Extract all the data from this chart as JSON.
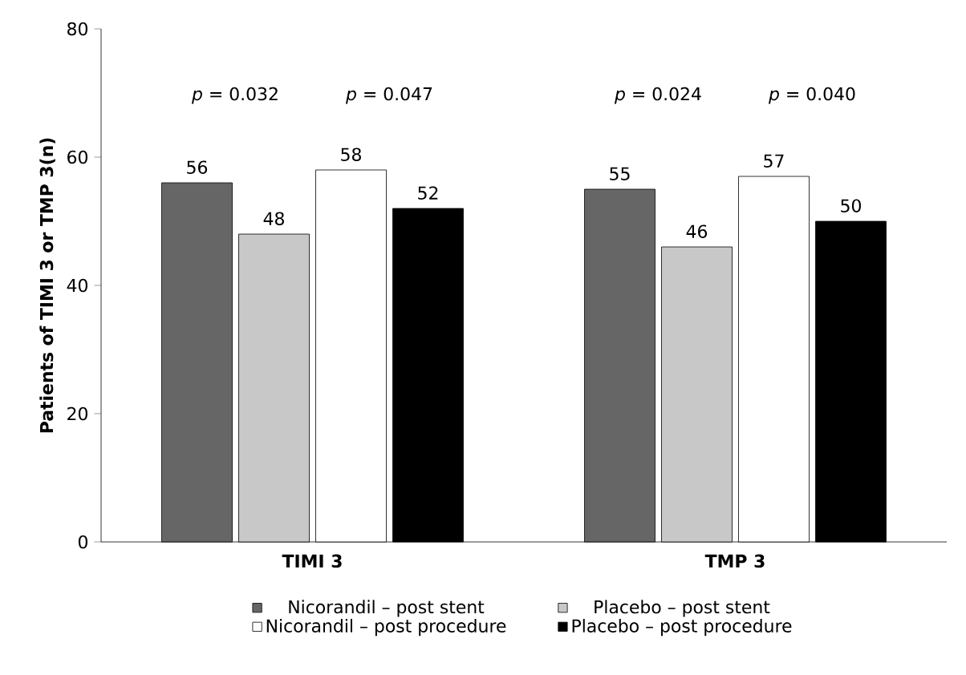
{
  "chart_data": {
    "type": "bar",
    "ylabel": "Patients of TIMI 3 or TMP 3(n)",
    "categories": [
      "TIMI 3",
      "TMP 3"
    ],
    "series": [
      {
        "name": "Nicorandil – post stent",
        "color": "#666666",
        "values": [
          56,
          55
        ]
      },
      {
        "name": "Placebo – post stent",
        "color": "#c8c8c8",
        "values": [
          48,
          46
        ]
      },
      {
        "name": "Nicorandil – post procedure",
        "color": "#ffffff",
        "values": [
          58,
          57
        ]
      },
      {
        "name": "Placebo – post procedure",
        "color": "#000000",
        "values": [
          52,
          50
        ]
      }
    ],
    "ylim": [
      0,
      80
    ],
    "yticks": [
      0,
      20,
      40,
      60,
      80
    ],
    "data_labels": true,
    "legend": "bottom",
    "grid": false,
    "annotations": [
      "*p* = 0.032",
      "*p* = 0.047",
      "*p* = 0.024",
      "*p* = 0.040"
    ]
  }
}
